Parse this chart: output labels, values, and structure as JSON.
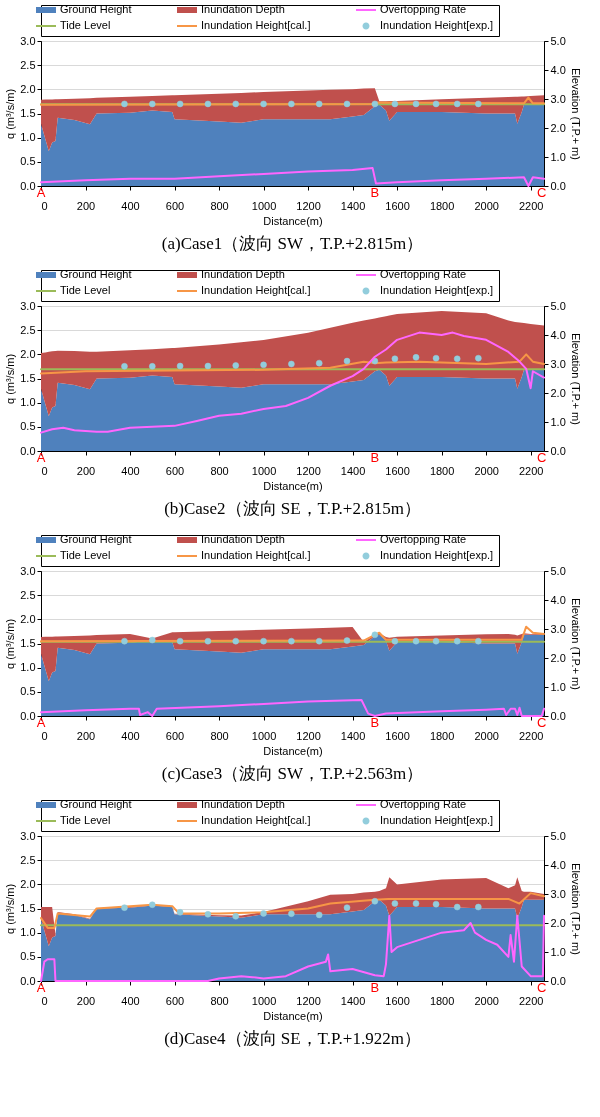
{
  "chart_data": [
    {
      "type": "area",
      "title": "(a)Case1（波向 SW，T.P.+2.815m）",
      "xlabel": "Distance(m)",
      "ylabel": "q (m³/s/m)",
      "y2label": "Elevation (T.P.+ m)",
      "legend": "top",
      "grid": "y",
      "stacked": true,
      "xlim": [
        0,
        2260
      ],
      "xticks": [
        0,
        200,
        400,
        600,
        800,
        1000,
        1200,
        1400,
        1600,
        1800,
        2000,
        2200
      ],
      "ylim": [
        0,
        3
      ],
      "yticks": [
        {
          "value": 0,
          "label": "0.0"
        },
        {
          "value": 0.5,
          "label": "0.5"
        },
        {
          "value": 1,
          "label": "1.0"
        },
        {
          "value": 1.5,
          "label": "1.5"
        },
        {
          "value": 2,
          "label": "2.0"
        },
        {
          "value": 2.5,
          "label": "2.5"
        },
        {
          "value": 3,
          "label": "3.0"
        }
      ],
      "y2lim": [
        0,
        5
      ],
      "y2ticks": [
        {
          "value": 0,
          "label": "0.0"
        },
        {
          "value": 1,
          "label": "1.0"
        },
        {
          "value": 2,
          "label": "2.0"
        },
        {
          "value": 3,
          "label": "3.0"
        },
        {
          "value": 4,
          "label": "4.0"
        },
        {
          "value": 5,
          "label": "5.0"
        }
      ],
      "x": [
        0,
        20,
        35,
        50,
        65,
        75,
        150,
        220,
        250,
        400,
        500,
        590,
        600,
        800,
        900,
        1000,
        1200,
        1300,
        1400,
        1450,
        1500,
        1520,
        1550,
        1565,
        1600,
        1800,
        2000,
        2100,
        2130,
        2140,
        2160,
        2170,
        2200,
        2260
      ],
      "series": [
        {
          "name": "Ground Height",
          "axis": "y2",
          "color": "#4f81bd",
          "values": [
            2.15,
            1.6,
            1.2,
            1.5,
            1.55,
            2.35,
            2.28,
            2.13,
            2.5,
            2.53,
            2.6,
            2.55,
            2.3,
            2.22,
            2.18,
            2.3,
            2.3,
            2.3,
            2.4,
            2.45,
            2.75,
            2.8,
            2.6,
            2.25,
            2.55,
            2.55,
            2.5,
            2.5,
            2.5,
            2.15,
            2.55,
            2.8,
            2.8,
            2.8
          ]
        },
        {
          "name": "Inundation Depth",
          "axis": "y2",
          "color": "#c0504d",
          "values": [
            0.82,
            1.38,
            1.78,
            1.48,
            1.44,
            0.64,
            0.73,
            0.9,
            0.54,
            0.55,
            0.5,
            0.58,
            0.83,
            0.96,
            1.03,
            0.94,
            0.99,
            1.02,
            0.94,
            0.91,
            0.62,
            0.12,
            0.32,
            0.68,
            0.38,
            0.44,
            0.54,
            0.57,
            0.58,
            0.93,
            0.54,
            0.29,
            0.3,
            0.33
          ]
        },
        {
          "name": "Overtopping Rate",
          "type": "line",
          "color": "#ff66ff",
          "x": [
            0,
            200,
            400,
            600,
            800,
            1000,
            1200,
            1400,
            1490,
            1505,
            1600,
            1800,
            2000,
            2170,
            2190,
            2210,
            2260
          ],
          "values": [
            0.08,
            0.12,
            0.15,
            0.15,
            0.2,
            0.25,
            0.3,
            0.33,
            0.37,
            0.05,
            0.08,
            0.12,
            0.15,
            0.18,
            0.0,
            0.18,
            0.15
          ]
        },
        {
          "name": "Tide Level",
          "type": "line",
          "axis": "y2",
          "color": "#9bbb59",
          "x": [
            0,
            2260
          ],
          "values": [
            2.82,
            2.82
          ]
        },
        {
          "name": "Inundation Height[cal.]",
          "type": "line",
          "axis": "y2",
          "color": "#f79646",
          "x": [
            0,
            1500,
            1510,
            2170,
            2190,
            2210,
            2260
          ],
          "values": [
            2.8,
            2.83,
            2.88,
            2.85,
            3.05,
            2.85,
            2.85
          ]
        },
        {
          "name": "Inundation Height[exp.]",
          "type": "scatter",
          "axis": "y2",
          "color": "#92cddc",
          "marker": "circle",
          "x": [
            375,
            500,
            625,
            750,
            875,
            1000,
            1125,
            1250,
            1375,
            1500,
            1590,
            1685,
            1775,
            1870,
            1965
          ],
          "values": [
            2.83,
            2.83,
            2.83,
            2.83,
            2.83,
            2.83,
            2.83,
            2.83,
            2.83,
            2.83,
            2.83,
            2.83,
            2.83,
            2.83,
            2.83
          ]
        }
      ],
      "annotations": [
        {
          "text": "A",
          "x": 0,
          "y": 0
        },
        {
          "text": "B",
          "x": 1500,
          "y": 0
        },
        {
          "text": "C",
          "x": 2250,
          "y": 0
        }
      ]
    },
    {
      "type": "area",
      "title": "(b)Case2（波向 SE，T.P.+2.815m）",
      "xlabel": "Distance(m)",
      "ylabel": "q (m³/s/m)",
      "y2label": "Elevation (T.P.+ m)",
      "legend": "top",
      "grid": "y",
      "stacked": true,
      "xlim": [
        0,
        2260
      ],
      "xticks": [
        0,
        200,
        400,
        600,
        800,
        1000,
        1200,
        1400,
        1600,
        1800,
        2000,
        2200
      ],
      "ylim": [
        0,
        3
      ],
      "yticks": [
        {
          "value": 0,
          "label": "0.0"
        },
        {
          "value": 0.5,
          "label": "0.5"
        },
        {
          "value": 1,
          "label": "1.0"
        },
        {
          "value": 1.5,
          "label": "1.5"
        },
        {
          "value": 2,
          "label": "2.0"
        },
        {
          "value": 2.5,
          "label": "2.5"
        },
        {
          "value": 3,
          "label": "3.0"
        }
      ],
      "y2lim": [
        0,
        5
      ],
      "y2ticks": [
        {
          "value": 0,
          "label": "0.0"
        },
        {
          "value": 1,
          "label": "1.0"
        },
        {
          "value": 2,
          "label": "2.0"
        },
        {
          "value": 3,
          "label": "3.0"
        },
        {
          "value": 4,
          "label": "4.0"
        },
        {
          "value": 5,
          "label": "5.0"
        }
      ],
      "x": [
        0,
        20,
        35,
        50,
        65,
        75,
        150,
        220,
        250,
        400,
        500,
        590,
        600,
        800,
        900,
        1000,
        1200,
        1300,
        1400,
        1450,
        1500,
        1520,
        1550,
        1565,
        1600,
        1800,
        2000,
        2100,
        2130,
        2140,
        2160,
        2170,
        2200,
        2260
      ],
      "series": [
        {
          "name": "Ground Height",
          "axis": "y2",
          "color": "#4f81bd",
          "values": [
            2.15,
            1.6,
            1.2,
            1.5,
            1.55,
            2.35,
            2.28,
            2.13,
            2.5,
            2.53,
            2.6,
            2.55,
            2.3,
            2.22,
            2.18,
            2.3,
            2.3,
            2.3,
            2.4,
            2.45,
            2.75,
            2.8,
            2.6,
            2.25,
            2.55,
            2.55,
            2.5,
            2.5,
            2.5,
            2.15,
            2.55,
            2.8,
            2.8,
            2.8
          ]
        },
        {
          "name": "Inundation Depth",
          "axis": "y2",
          "color": "#c0504d",
          "values": [
            1.23,
            1.8,
            2.22,
            1.94,
            1.9,
            1.11,
            1.17,
            1.29,
            0.92,
            0.94,
            0.91,
            1.0,
            1.25,
            1.45,
            1.57,
            1.53,
            1.78,
            1.95,
            2.02,
            2.05,
            1.82,
            1.8,
            2.05,
            2.42,
            2.17,
            2.28,
            2.25,
            2.0,
            1.95,
            2.29,
            1.87,
            1.61,
            1.58,
            1.53
          ]
        },
        {
          "name": "Overtopping Rate",
          "type": "line",
          "color": "#ff66ff",
          "x": [
            0,
            50,
            100,
            150,
            250,
            300,
            400,
            500,
            600,
            700,
            800,
            900,
            1000,
            1100,
            1200,
            1300,
            1400,
            1450,
            1500,
            1550,
            1600,
            1700,
            1800,
            1850,
            1900,
            2000,
            2100,
            2150,
            2180,
            2200,
            2210,
            2260
          ],
          "values": [
            0.38,
            0.45,
            0.48,
            0.43,
            0.4,
            0.4,
            0.48,
            0.5,
            0.52,
            0.62,
            0.73,
            0.77,
            0.87,
            0.93,
            1.1,
            1.35,
            1.55,
            1.7,
            1.95,
            2.1,
            2.3,
            2.45,
            2.4,
            2.45,
            2.38,
            2.3,
            2.05,
            1.85,
            1.7,
            1.3,
            1.65,
            1.52
          ]
        },
        {
          "name": "Tide Level",
          "type": "line",
          "axis": "y2",
          "color": "#9bbb59",
          "x": [
            0,
            2260
          ],
          "values": [
            2.82,
            2.82
          ]
        },
        {
          "name": "Inundation Height[cal.]",
          "type": "line",
          "axis": "y2",
          "color": "#f79646",
          "x": [
            0,
            200,
            1000,
            1300,
            1450,
            1500,
            1550,
            1700,
            2000,
            2150,
            2180,
            2210,
            2260
          ],
          "values": [
            2.67,
            2.75,
            2.8,
            2.87,
            3.08,
            3.03,
            3.05,
            3.08,
            3.0,
            3.08,
            3.33,
            3.08,
            3.0
          ]
        },
        {
          "name": "Inundation Height[exp.]",
          "type": "scatter",
          "axis": "y2",
          "color": "#92cddc",
          "marker": "circle",
          "x": [
            375,
            500,
            625,
            750,
            875,
            1000,
            1125,
            1250,
            1375,
            1500,
            1590,
            1685,
            1775,
            1870,
            1965
          ],
          "values": [
            2.92,
            2.92,
            2.93,
            2.93,
            2.95,
            2.97,
            3.0,
            3.03,
            3.1,
            3.1,
            3.18,
            3.23,
            3.2,
            3.18,
            3.2
          ]
        }
      ],
      "annotations": [
        {
          "text": "A",
          "x": 0,
          "y": 0
        },
        {
          "text": "B",
          "x": 1500,
          "y": 0
        },
        {
          "text": "C",
          "x": 2250,
          "y": 0
        }
      ]
    },
    {
      "type": "area",
      "title": "(c)Case3（波向 SW，T.P.+2.563m）",
      "xlabel": "Distance(m)",
      "ylabel": "q (m³/s/m)",
      "y2label": "Elevation (T.P.+ m)",
      "legend": "top",
      "grid": "y",
      "stacked": true,
      "xlim": [
        0,
        2260
      ],
      "xticks": [
        0,
        200,
        400,
        600,
        800,
        1000,
        1200,
        1400,
        1600,
        1800,
        2000,
        2200
      ],
      "ylim": [
        0,
        3
      ],
      "yticks": [
        {
          "value": 0,
          "label": "0.0"
        },
        {
          "value": 0.5,
          "label": "0.5"
        },
        {
          "value": 1,
          "label": "1.0"
        },
        {
          "value": 1.5,
          "label": "1.5"
        },
        {
          "value": 2,
          "label": "2.0"
        },
        {
          "value": 2.5,
          "label": "2.5"
        },
        {
          "value": 3,
          "label": "3.0"
        }
      ],
      "y2lim": [
        0,
        5
      ],
      "y2ticks": [
        {
          "value": 0,
          "label": "0.0"
        },
        {
          "value": 1,
          "label": "1.0"
        },
        {
          "value": 2,
          "label": "2.0"
        },
        {
          "value": 3,
          "label": "3.0"
        },
        {
          "value": 4,
          "label": "4.0"
        },
        {
          "value": 5,
          "label": "5.0"
        }
      ],
      "x": [
        0,
        20,
        35,
        50,
        65,
        75,
        150,
        220,
        250,
        400,
        500,
        590,
        600,
        800,
        900,
        1000,
        1200,
        1300,
        1400,
        1450,
        1500,
        1520,
        1550,
        1565,
        1600,
        1800,
        2000,
        2100,
        2130,
        2140,
        2160,
        2170,
        2200,
        2260
      ],
      "series": [
        {
          "name": "Ground Height",
          "axis": "y2",
          "color": "#4f81bd",
          "values": [
            2.15,
            1.6,
            1.2,
            1.5,
            1.55,
            2.35,
            2.28,
            2.13,
            2.5,
            2.53,
            2.6,
            2.55,
            2.3,
            2.22,
            2.18,
            2.3,
            2.3,
            2.3,
            2.4,
            2.45,
            2.75,
            2.8,
            2.6,
            2.25,
            2.55,
            2.55,
            2.5,
            2.5,
            2.5,
            2.15,
            2.55,
            2.8,
            2.8,
            2.8
          ]
        },
        {
          "name": "Inundation Depth",
          "axis": "y2",
          "color": "#c0504d",
          "values": [
            0.57,
            1.13,
            1.53,
            1.23,
            1.19,
            0.39,
            0.48,
            0.65,
            0.29,
            0.3,
            0.07,
            0.34,
            0.59,
            0.71,
            0.77,
            0.67,
            0.72,
            0.74,
            0.67,
            0.1,
            0.05,
            0.05,
            0.12,
            0.45,
            0.18,
            0.23,
            0.32,
            0.33,
            0.3,
            0.63,
            0.28,
            0.05,
            0.03,
            0.03
          ]
        },
        {
          "name": "Overtopping Rate",
          "type": "line",
          "color": "#ff66ff",
          "x": [
            0,
            200,
            400,
            440,
            445,
            480,
            500,
            520,
            800,
            1000,
            1200,
            1440,
            1470,
            1500,
            1550,
            1800,
            2000,
            2080,
            2090,
            2110,
            2130,
            2140,
            2150,
            2160,
            2250,
            2260
          ],
          "values": [
            0.08,
            0.12,
            0.15,
            0.15,
            0.02,
            0.08,
            0.0,
            0.15,
            0.2,
            0.25,
            0.3,
            0.33,
            0.05,
            0.0,
            0.05,
            0.1,
            0.13,
            0.15,
            0.02,
            0.15,
            0.15,
            0.02,
            0.17,
            0.0,
            0.0,
            0.15
          ]
        },
        {
          "name": "Tide Level",
          "type": "line",
          "axis": "y2",
          "color": "#9bbb59",
          "x": [
            0,
            2260
          ],
          "values": [
            2.56,
            2.56
          ]
        },
        {
          "name": "Inundation Height[cal.]",
          "type": "line",
          "axis": "y2",
          "color": "#f79646",
          "x": [
            0,
            1450,
            1500,
            1520,
            1550,
            2160,
            2180,
            2210,
            2260
          ],
          "values": [
            2.58,
            2.6,
            2.8,
            2.87,
            2.63,
            2.63,
            3.08,
            2.87,
            2.83
          ]
        },
        {
          "name": "Inundation Height[exp.]",
          "type": "scatter",
          "axis": "y2",
          "color": "#92cddc",
          "marker": "circle",
          "x": [
            375,
            500,
            625,
            750,
            875,
            1000,
            1125,
            1250,
            1375,
            1500,
            1590,
            1685,
            1775,
            1870,
            1965
          ],
          "values": [
            2.58,
            2.62,
            2.58,
            2.58,
            2.58,
            2.58,
            2.58,
            2.58,
            2.6,
            2.8,
            2.58,
            2.58,
            2.58,
            2.58,
            2.58
          ]
        }
      ],
      "annotations": [
        {
          "text": "A",
          "x": 0,
          "y": 0
        },
        {
          "text": "B",
          "x": 1500,
          "y": 0
        },
        {
          "text": "C",
          "x": 2250,
          "y": 0
        }
      ]
    },
    {
      "type": "area",
      "title": "(d)Case4（波向 SE，T.P.+1.922m）",
      "xlabel": "Distance(m)",
      "ylabel": "q (m³/s/m)",
      "y2label": "Elevation (T.P.+ m)",
      "legend": "top",
      "grid": "y",
      "stacked": true,
      "xlim": [
        0,
        2260
      ],
      "xticks": [
        0,
        200,
        400,
        600,
        800,
        1000,
        1200,
        1400,
        1600,
        1800,
        2000,
        2200
      ],
      "ylim": [
        0,
        3
      ],
      "yticks": [
        {
          "value": 0,
          "label": "0.0"
        },
        {
          "value": 0.5,
          "label": "0.5"
        },
        {
          "value": 1,
          "label": "1.0"
        },
        {
          "value": 1.5,
          "label": "1.5"
        },
        {
          "value": 2,
          "label": "2.0"
        },
        {
          "value": 2.5,
          "label": "2.5"
        },
        {
          "value": 3,
          "label": "3.0"
        }
      ],
      "y2lim": [
        0,
        5
      ],
      "y2ticks": [
        {
          "value": 0,
          "label": "0.0"
        },
        {
          "value": 1,
          "label": "1.0"
        },
        {
          "value": 2,
          "label": "2.0"
        },
        {
          "value": 3,
          "label": "3.0"
        },
        {
          "value": 4,
          "label": "4.0"
        },
        {
          "value": 5,
          "label": "5.0"
        }
      ],
      "x": [
        0,
        20,
        35,
        50,
        65,
        75,
        150,
        220,
        250,
        400,
        500,
        590,
        600,
        800,
        900,
        1000,
        1200,
        1300,
        1400,
        1450,
        1500,
        1520,
        1550,
        1565,
        1600,
        1800,
        2000,
        2100,
        2130,
        2140,
        2160,
        2170,
        2200,
        2260
      ],
      "series": [
        {
          "name": "Ground Height",
          "axis": "y2",
          "color": "#4f81bd",
          "values": [
            2.15,
            1.6,
            1.2,
            1.5,
            1.55,
            2.35,
            2.28,
            2.13,
            2.5,
            2.53,
            2.6,
            2.55,
            2.3,
            2.22,
            2.18,
            2.3,
            2.3,
            2.3,
            2.4,
            2.45,
            2.75,
            2.8,
            2.6,
            2.25,
            2.55,
            2.55,
            2.5,
            2.5,
            2.5,
            2.15,
            2.55,
            2.8,
            2.8,
            2.8
          ]
        },
        {
          "name": "Inundation Depth",
          "axis": "y2",
          "color": "#c0504d",
          "values": [
            0.4,
            0.95,
            1.35,
            1.05,
            0.05,
            0.03,
            0.02,
            0.02,
            0.02,
            0.02,
            0.02,
            0.02,
            0.02,
            0.05,
            0.08,
            0.08,
            0.45,
            0.67,
            0.6,
            0.6,
            0.33,
            0.3,
            0.6,
            1.33,
            0.78,
            0.95,
            1.05,
            0.7,
            0.8,
            1.43,
            0.55,
            0.28,
            0.28,
            0.2
          ]
        },
        {
          "name": "Overtopping Rate",
          "type": "line",
          "color": "#ff66ff",
          "x": [
            0,
            15,
            30,
            60,
            65,
            750,
            800,
            900,
            950,
            1000,
            1100,
            1200,
            1280,
            1290,
            1300,
            1400,
            1500,
            1540,
            1550,
            1565,
            1575,
            1600,
            1700,
            1800,
            1900,
            1930,
            1950,
            2000,
            2050,
            2100,
            2110,
            2125,
            2140,
            2160,
            2200,
            2255,
            2260
          ],
          "values": [
            0.0,
            0.4,
            0.45,
            0.45,
            0.0,
            0.0,
            0.05,
            0.1,
            0.08,
            0.05,
            0.1,
            0.3,
            0.4,
            0.55,
            0.2,
            0.25,
            0.12,
            0.1,
            0.35,
            1.35,
            0.6,
            0.7,
            0.85,
            1.0,
            1.05,
            1.2,
            1.0,
            0.85,
            0.75,
            0.5,
            0.95,
            0.4,
            1.35,
            0.3,
            0.1,
            0.1,
            1.35
          ]
        },
        {
          "name": "Tide Level",
          "type": "line",
          "axis": "y2",
          "color": "#9bbb59",
          "x": [
            0,
            2260
          ],
          "values": [
            1.92,
            1.92
          ]
        },
        {
          "name": "Inundation Height[cal.]",
          "type": "line",
          "axis": "y2",
          "color": "#f79646",
          "x": [
            0,
            30,
            60,
            75,
            220,
            250,
            500,
            590,
            620,
            800,
            1000,
            1200,
            1300,
            1500,
            1560,
            2100,
            2150,
            2200,
            2260
          ],
          "values": [
            2.17,
            1.83,
            1.83,
            2.33,
            2.22,
            2.5,
            2.63,
            2.58,
            2.33,
            2.33,
            2.37,
            2.5,
            2.67,
            2.8,
            2.83,
            2.83,
            2.67,
            3.03,
            2.92
          ]
        },
        {
          "name": "Inundation Height[exp.]",
          "type": "scatter",
          "axis": "y2",
          "color": "#92cddc",
          "marker": "circle",
          "x": [
            375,
            500,
            625,
            750,
            875,
            1000,
            1125,
            1250,
            1375,
            1500,
            1590,
            1685,
            1775,
            1870,
            1965
          ],
          "values": [
            2.53,
            2.63,
            2.37,
            2.3,
            2.23,
            2.33,
            2.32,
            2.28,
            2.53,
            2.75,
            2.67,
            2.67,
            2.65,
            2.55,
            2.55
          ]
        }
      ],
      "annotations": [
        {
          "text": "A",
          "x": 0,
          "y": 0
        },
        {
          "text": "B",
          "x": 1500,
          "y": 0
        },
        {
          "text": "C",
          "x": 2250,
          "y": 0
        }
      ]
    }
  ]
}
